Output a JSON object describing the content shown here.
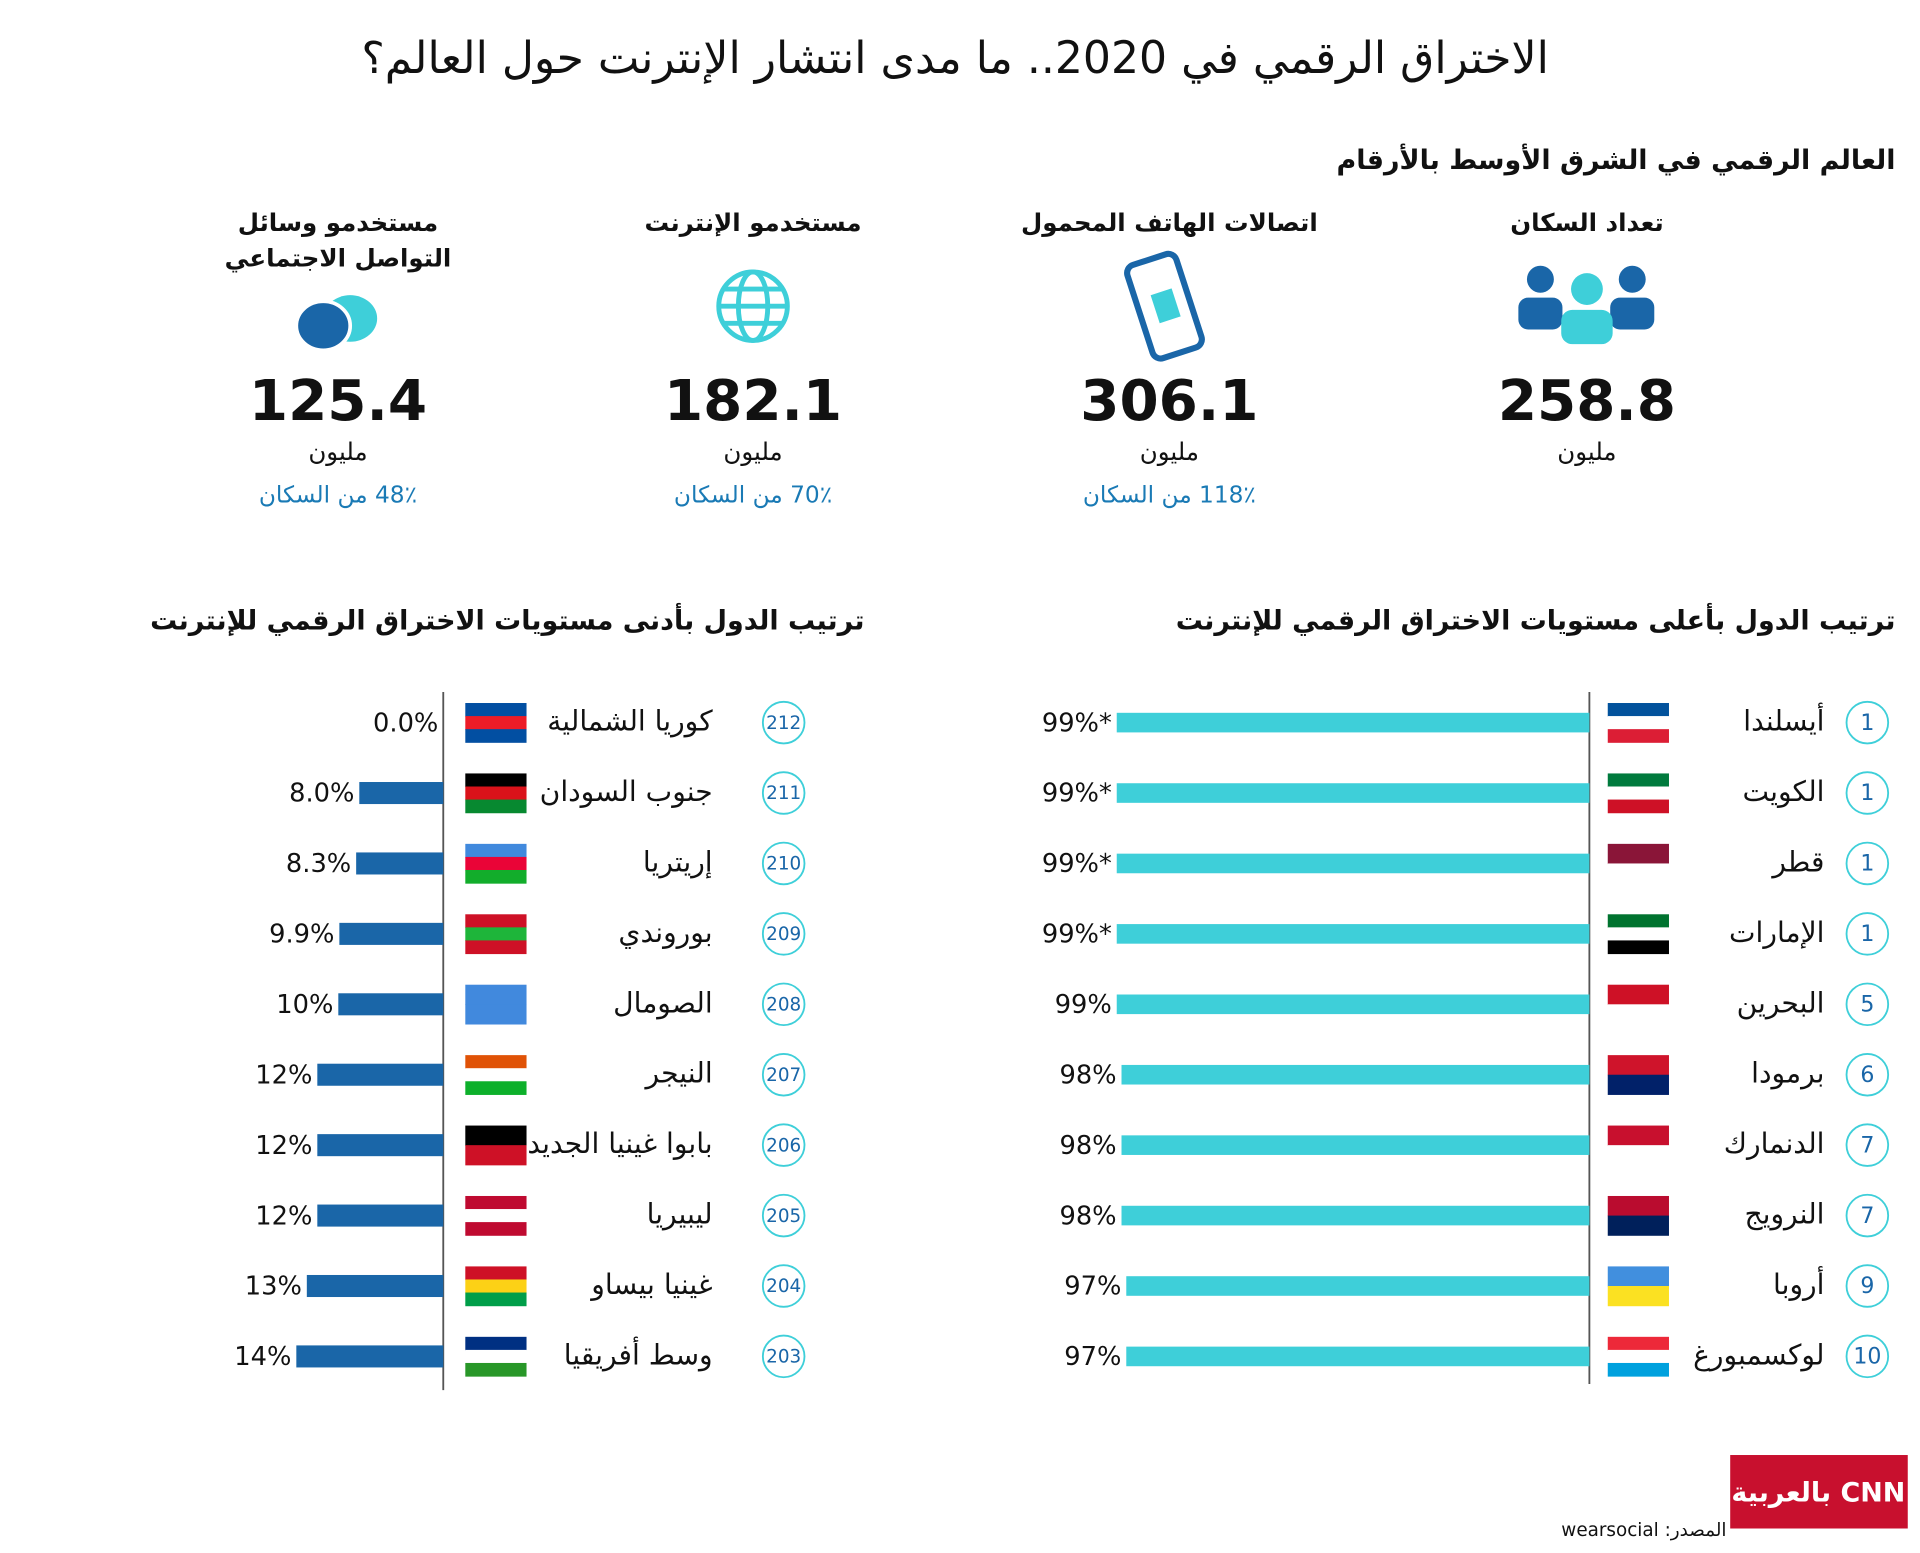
{
  "title": "الاختراق الرقمي في 2020.. ما مدى انتشار الإنترنت حول العالم؟",
  "section_title": "العالم الرقمي في الشرق الأوسط بالأرقام",
  "stats": [
    {
      "label": "تعداد السكان",
      "value": "258.8",
      "unit": "مليون"
    },
    {
      "label": "اتصالات الهاتف المحمول",
      "value": "306.1",
      "unit": "مليون",
      "share": "118٪ من السكان"
    },
    {
      "label": "مستخدمو الإنترنت",
      "value": "182.1",
      "unit": "مليون",
      "share": "70٪ من السكان"
    },
    {
      "label": [
        "مستخدمو وسائل",
        "التواصل الاجتماعي"
      ],
      "value": "125.4",
      "unit": "مليون",
      "share": "48٪ من السكان"
    }
  ],
  "chart_data": [
    {
      "type": "bar",
      "title": "ترتيب الدول بأعلى مستويات الاختراق الرقمي للإنترنت",
      "color": "#3ecfd9",
      "categories": [
        "أيسلندا",
        "الكويت",
        "قطر",
        "الإمارات",
        "البحرين",
        "برمودا",
        "الدنمارك",
        "النرويج",
        "أروبا",
        "لوكسمبورغ"
      ],
      "ranks": [
        "1",
        "1",
        "1",
        "1",
        "5",
        "6",
        "7",
        "7",
        "9",
        "10"
      ],
      "values": [
        99,
        99,
        99,
        99,
        99,
        98,
        98,
        98,
        97,
        97
      ],
      "value_labels": [
        "99%*",
        "99%*",
        "99%*",
        "99%*",
        "99%",
        "98%",
        "98%",
        "98%",
        "97%",
        "97%"
      ],
      "xlim": [
        0,
        99
      ]
    },
    {
      "type": "bar",
      "title": "ترتيب الدول بأدنى مستويات الاختراق الرقمي للإنترنت",
      "color": "#1a66a8",
      "categories": [
        "كوريا الشمالية",
        "جنوب السودان",
        "إريتريا",
        "بوروندي",
        "الصومال",
        "النيجر",
        "بابوا غينيا الجديدة",
        "ليبيريا",
        "غينيا بيساو",
        "وسط أفريقيا"
      ],
      "ranks": [
        "212",
        "211",
        "210",
        "209",
        "208",
        "207",
        "206",
        "205",
        "204",
        "203"
      ],
      "values": [
        0,
        8,
        8.3,
        9.9,
        10,
        12,
        12,
        12,
        13,
        14
      ],
      "value_labels": [
        "0.0%",
        "8.0%",
        "8.3%",
        "9.9%",
        "10%",
        "12%",
        "12%",
        "12%",
        "13%",
        "14%"
      ],
      "xlim": [
        0,
        14
      ]
    }
  ],
  "source": "المصدر: wearsocial",
  "logo": "بالعربية CNN"
}
